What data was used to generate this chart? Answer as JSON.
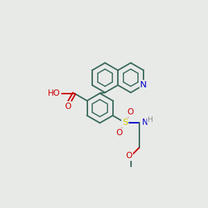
{
  "bg_color": "#e8eae8",
  "bond_color": "#3d6b5e",
  "bond_width": 1.5,
  "atom_colors": {
    "N": "#0000cc",
    "O": "#cc0000",
    "S": "#cccc00",
    "C": "#3d6b5e",
    "H": "#888888"
  },
  "font_size": 8.5,
  "fig_size": [
    3.0,
    3.0
  ],
  "dpi": 100
}
